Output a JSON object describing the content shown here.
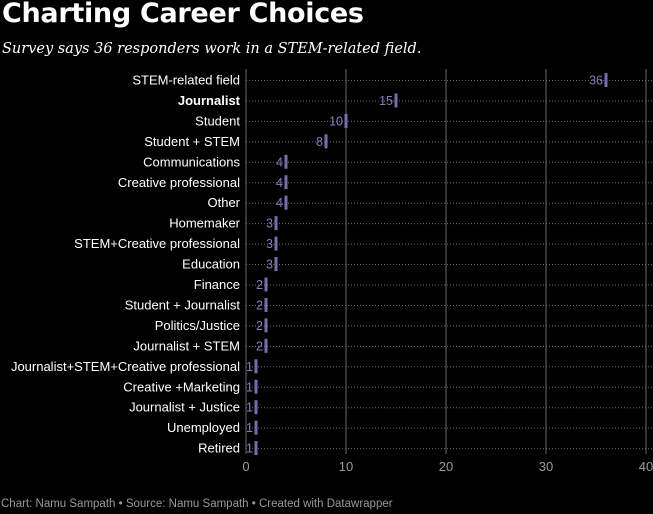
{
  "header": {
    "title": "Charting Career Choices",
    "subtitle": "Survey says 36 responders work in a STEM-related field."
  },
  "footer": {
    "text": "Chart: Namu Sampath • Source: Namu Sampath • Created with Datawrapper"
  },
  "colors": {
    "background": "#000000",
    "marker": "#7c6bab",
    "label": "#ffffff",
    "value_label": "#8a7bc0",
    "grid": "#6b6b6b"
  },
  "chart_data": {
    "type": "dot",
    "categories": [
      "STEM-related field",
      "Journalist",
      "Student",
      "Student + STEM",
      "Communications",
      "Creative professional",
      "Other",
      "Homemaker",
      "STEM+Creative professional",
      "Education",
      "Finance",
      "Student + Journalist",
      "Politics/Justice",
      "Journalist + STEM",
      "Journalist+STEM+Creative professional",
      "Creative +Marketing",
      "Journalist + Justice",
      "Unemployed",
      "Retired"
    ],
    "values": [
      36,
      15,
      10,
      8,
      4,
      4,
      4,
      3,
      3,
      3,
      2,
      2,
      2,
      2,
      1,
      1,
      1,
      1,
      1
    ],
    "highlighted": [
      "Journalist"
    ],
    "xlim": [
      0,
      40
    ],
    "xticks": [
      0,
      10,
      20,
      30,
      40
    ],
    "grid": true
  }
}
